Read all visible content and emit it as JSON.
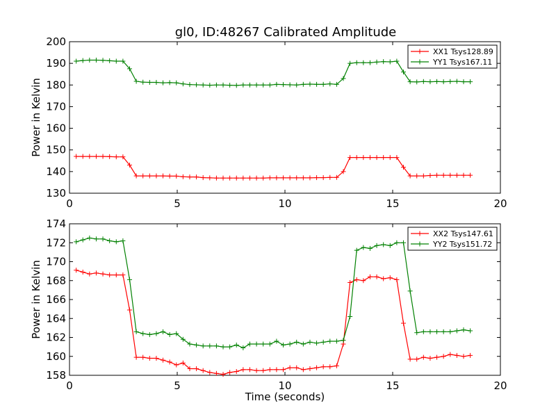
{
  "figure_title": "gl0, ID:48267 Calibrated Amplitude",
  "colors": {
    "series1": "#ff0000",
    "series2": "#008000",
    "axes": "#000000",
    "background": "#ffffff"
  },
  "chart_data": [
    {
      "type": "line",
      "title": "gl0, ID:48267 Calibrated Amplitude",
      "xlabel": "",
      "ylabel": "Power in Kelvin",
      "xlim": [
        0,
        20
      ],
      "ylim": [
        130,
        200
      ],
      "xticks": [
        0,
        5,
        10,
        15,
        20
      ],
      "yticks": [
        130,
        140,
        150,
        160,
        170,
        180,
        190,
        200
      ],
      "grid": false,
      "legend_position": "top-right",
      "x": [
        0.31,
        0.62,
        0.93,
        1.24,
        1.55,
        1.86,
        2.17,
        2.48,
        2.79,
        3.1,
        3.41,
        3.72,
        4.03,
        4.34,
        4.65,
        4.96,
        5.27,
        5.58,
        5.89,
        6.2,
        6.51,
        6.82,
        7.13,
        7.44,
        7.75,
        8.06,
        8.37,
        8.68,
        8.99,
        9.3,
        9.61,
        9.92,
        10.23,
        10.54,
        10.85,
        11.16,
        11.47,
        11.78,
        12.09,
        12.4,
        12.71,
        13.02,
        13.33,
        13.64,
        13.95,
        14.26,
        14.57,
        14.88,
        15.19,
        15.5,
        15.81,
        16.12,
        16.43,
        16.74,
        17.05,
        17.36,
        17.67,
        17.98,
        18.29,
        18.6
      ],
      "series": [
        {
          "name": "XX1 Tsys128.89",
          "color": "#ff0000",
          "values": [
            147.0,
            147.0,
            147.0,
            147.0,
            147.0,
            146.9,
            146.8,
            146.8,
            143.0,
            138.0,
            138.0,
            138.0,
            138.0,
            138.0,
            137.9,
            137.9,
            137.6,
            137.5,
            137.5,
            137.2,
            137.1,
            137.0,
            137.0,
            137.0,
            137.0,
            137.0,
            137.0,
            137.0,
            137.0,
            137.1,
            137.1,
            137.1,
            137.1,
            137.1,
            137.1,
            137.1,
            137.2,
            137.2,
            137.3,
            137.3,
            140.0,
            146.5,
            146.5,
            146.5,
            146.5,
            146.5,
            146.5,
            146.5,
            146.5,
            142.0,
            138.0,
            138.0,
            138.0,
            138.2,
            138.3,
            138.3,
            138.3,
            138.3,
            138.3,
            138.3
          ]
        },
        {
          "name": "YY1 Tsys167.11",
          "color": "#008000",
          "values": [
            191.0,
            191.3,
            191.5,
            191.5,
            191.4,
            191.2,
            191.0,
            191.0,
            187.5,
            181.7,
            181.3,
            181.2,
            181.2,
            181.0,
            181.1,
            181.0,
            180.5,
            180.2,
            180.1,
            180.0,
            179.9,
            180.0,
            180.0,
            179.9,
            179.8,
            180.0,
            180.0,
            180.0,
            180.0,
            180.0,
            180.3,
            180.2,
            180.1,
            180.0,
            180.3,
            180.4,
            180.3,
            180.3,
            180.5,
            180.3,
            183.0,
            190.0,
            190.3,
            190.3,
            190.3,
            190.6,
            190.8,
            190.7,
            191.0,
            186.0,
            181.5,
            181.4,
            181.6,
            181.5,
            181.6,
            181.5,
            181.6,
            181.7,
            181.5,
            181.5
          ]
        }
      ]
    },
    {
      "type": "line",
      "title": "",
      "xlabel": "Time (seconds)",
      "ylabel": "Power in Kelvin",
      "xlim": [
        0,
        20
      ],
      "ylim": [
        158,
        174
      ],
      "xticks": [
        0,
        5,
        10,
        15,
        20
      ],
      "yticks": [
        158,
        160,
        162,
        164,
        166,
        168,
        170,
        172,
        174
      ],
      "grid": false,
      "legend_position": "top-right",
      "x": [
        0.31,
        0.62,
        0.93,
        1.24,
        1.55,
        1.86,
        2.17,
        2.48,
        2.79,
        3.1,
        3.41,
        3.72,
        4.03,
        4.34,
        4.65,
        4.96,
        5.27,
        5.58,
        5.89,
        6.2,
        6.51,
        6.82,
        7.13,
        7.44,
        7.75,
        8.06,
        8.37,
        8.68,
        8.99,
        9.3,
        9.61,
        9.92,
        10.23,
        10.54,
        10.85,
        11.16,
        11.47,
        11.78,
        12.09,
        12.4,
        12.71,
        13.02,
        13.33,
        13.64,
        13.95,
        14.26,
        14.57,
        14.88,
        15.19,
        15.5,
        15.81,
        16.12,
        16.43,
        16.74,
        17.05,
        17.36,
        17.67,
        17.98,
        18.29,
        18.6
      ],
      "series": [
        {
          "name": "XX2 Tsys147.61",
          "color": "#ff0000",
          "values": [
            169.1,
            168.9,
            168.7,
            168.8,
            168.7,
            168.6,
            168.6,
            168.6,
            164.9,
            159.9,
            159.9,
            159.8,
            159.8,
            159.6,
            159.4,
            159.1,
            159.3,
            158.7,
            158.7,
            158.5,
            158.3,
            158.2,
            158.1,
            158.3,
            158.4,
            158.6,
            158.6,
            158.5,
            158.5,
            158.6,
            158.6,
            158.6,
            158.8,
            158.8,
            158.6,
            158.7,
            158.8,
            158.9,
            158.9,
            159.0,
            161.3,
            167.8,
            168.1,
            168.0,
            168.4,
            168.4,
            168.2,
            168.3,
            168.1,
            163.5,
            159.7,
            159.7,
            159.9,
            159.8,
            159.9,
            160.0,
            160.2,
            160.1,
            160.0,
            160.1
          ]
        },
        {
          "name": "YY2 Tsys151.72",
          "color": "#008000",
          "values": [
            172.1,
            172.3,
            172.5,
            172.4,
            172.4,
            172.2,
            172.1,
            172.2,
            168.1,
            162.6,
            162.4,
            162.3,
            162.4,
            162.6,
            162.3,
            162.4,
            161.8,
            161.3,
            161.2,
            161.1,
            161.1,
            161.1,
            161.0,
            161.0,
            161.2,
            160.9,
            161.3,
            161.3,
            161.3,
            161.3,
            161.6,
            161.2,
            161.3,
            161.5,
            161.3,
            161.5,
            161.4,
            161.5,
            161.6,
            161.6,
            161.7,
            164.2,
            171.2,
            171.5,
            171.4,
            171.7,
            171.8,
            171.7,
            172.0,
            172.0,
            166.9,
            162.5,
            162.6,
            162.6,
            162.6,
            162.6,
            162.6,
            162.7,
            162.8,
            162.7
          ]
        }
      ]
    }
  ]
}
